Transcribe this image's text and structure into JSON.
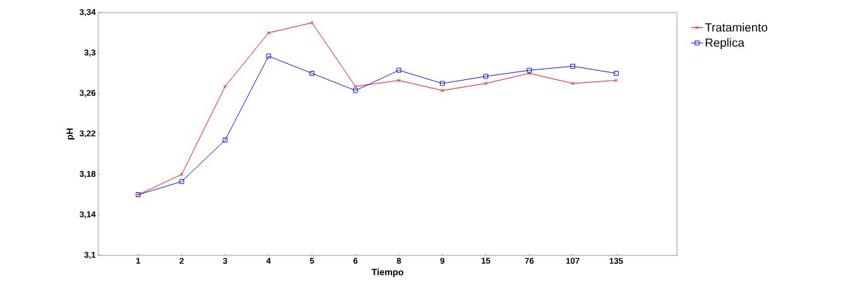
{
  "chart_data": {
    "type": "line",
    "xlabel": "Tiempo",
    "ylabel": "pH",
    "categories": [
      "1",
      "2",
      "3",
      "4",
      "5",
      "6",
      "8",
      "9",
      "15",
      "76",
      "107",
      "135"
    ],
    "series": [
      {
        "name": "Tratamiento",
        "color": "#ff0000",
        "marker": "cross",
        "values": [
          3.16,
          3.18,
          3.267,
          3.32,
          3.33,
          3.267,
          3.273,
          3.263,
          3.27,
          3.28,
          3.27,
          3.273
        ]
      },
      {
        "name": "Replica",
        "color": "#0000ff",
        "marker": "square",
        "values": [
          3.16,
          3.173,
          3.214,
          3.297,
          3.28,
          3.263,
          3.283,
          3.27,
          3.277,
          3.283,
          3.287,
          3.28
        ]
      }
    ],
    "ylim": [
      3.1,
      3.34
    ],
    "yticks": [
      {
        "value": 3.1,
        "label": "3,1"
      },
      {
        "value": 3.14,
        "label": "3,14"
      },
      {
        "value": 3.18,
        "label": "3,18"
      },
      {
        "value": 3.22,
        "label": "3,22"
      },
      {
        "value": 3.26,
        "label": "3,26"
      },
      {
        "value": 3.3,
        "label": "3,3"
      },
      {
        "value": 3.34,
        "label": "3,34"
      }
    ],
    "grid": false,
    "legend": "right",
    "line_style": "solid"
  }
}
